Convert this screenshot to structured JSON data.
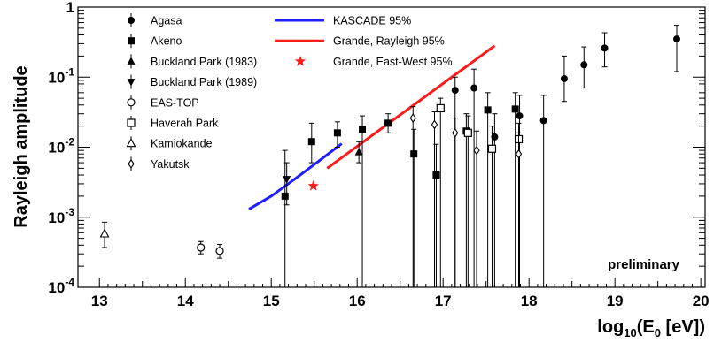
{
  "chart_data": {
    "type": "scatter",
    "title": "",
    "xlabel_main": "log",
    "xlabel_sub": "10",
    "xlabel_paren": "(E",
    "xlabel_sub2": "0",
    "xlabel_end": " [eV])",
    "ylabel": "Rayleigh amplitude",
    "x_range": [
      12.75,
      20.05
    ],
    "y_range_log": [
      -4,
      0
    ],
    "y_scale": "log",
    "x_ticks": [
      13,
      14,
      15,
      16,
      17,
      18,
      19,
      20
    ],
    "y_ticks": [
      {
        "base": "10",
        "exp": "-4"
      },
      {
        "base": "10",
        "exp": "-3"
      },
      {
        "base": "10",
        "exp": "-2"
      },
      {
        "base": "10",
        "exp": "-1"
      },
      {
        "base": "1",
        "exp": ""
      }
    ],
    "annotation": "preliminary",
    "legend": [
      {
        "label": "Agasa",
        "marker": "circle-filled"
      },
      {
        "label": "Akeno",
        "marker": "square-filled"
      },
      {
        "label": "Buckland Park (1983)",
        "marker": "triangle-up-filled"
      },
      {
        "label": "Buckland Park (1989)",
        "marker": "triangle-down-filled"
      },
      {
        "label": "EAS-TOP",
        "marker": "circle-open"
      },
      {
        "label": "Haverah Park",
        "marker": "square-open"
      },
      {
        "label": "Kamiokande",
        "marker": "triangle-up-open"
      },
      {
        "label": "Yakutsk",
        "marker": "diamond-open"
      },
      {
        "label": "KASCADE 95%",
        "marker": "line",
        "color": "#1e1eff"
      },
      {
        "label": "Grande, Rayleigh 95%",
        "marker": "line",
        "color": "#ff1a1a"
      },
      {
        "label": "Grande, East-West 95%",
        "marker": "star",
        "color": "#ff1a1a"
      }
    ],
    "series": [
      {
        "name": "Agasa",
        "marker": "circle-filled",
        "points": [
          {
            "x": 17.14,
            "y": 0.065,
            "lo": 0.0001,
            "hi": 0.1
          },
          {
            "x": 17.36,
            "y": 0.07,
            "lo": 0.0001,
            "hi": 0.13
          },
          {
            "x": 17.6,
            "y": 0.014,
            "lo": 0.0001,
            "hi": 0.03
          },
          {
            "x": 17.89,
            "y": 0.028,
            "lo": 0.0001,
            "hi": 0.055
          },
          {
            "x": 18.17,
            "y": 0.024,
            "lo": 0.0001,
            "hi": 0.055
          },
          {
            "x": 18.41,
            "y": 0.095,
            "lo": 0.045,
            "hi": 0.2
          },
          {
            "x": 18.64,
            "y": 0.15,
            "lo": 0.07,
            "hi": 0.27
          },
          {
            "x": 18.88,
            "y": 0.26,
            "lo": 0.14,
            "hi": 0.43
          },
          {
            "x": 19.72,
            "y": 0.35,
            "lo": 0.12,
            "hi": 0.55
          }
        ]
      },
      {
        "name": "Akeno",
        "marker": "square-filled",
        "points": [
          {
            "x": 15.16,
            "y": 0.002,
            "lo": 0.0001,
            "hi": 0.009
          },
          {
            "x": 15.47,
            "y": 0.012,
            "lo": 0.006,
            "hi": 0.022
          },
          {
            "x": 15.77,
            "y": 0.016,
            "lo": 0.01,
            "hi": 0.023
          },
          {
            "x": 16.06,
            "y": 0.018,
            "lo": 0.0001,
            "hi": 0.028
          },
          {
            "x": 16.36,
            "y": 0.022,
            "lo": 0.016,
            "hi": 0.03
          },
          {
            "x": 16.66,
            "y": 0.008,
            "lo": 0.0001,
            "hi": 0.018
          },
          {
            "x": 16.92,
            "y": 0.004,
            "lo": 0.0001,
            "hi": 0.011
          },
          {
            "x": 17.27,
            "y": 0.017,
            "lo": 0.0001,
            "hi": 0.03
          },
          {
            "x": 17.52,
            "y": 0.034,
            "lo": 0.0001,
            "hi": 0.06
          },
          {
            "x": 17.84,
            "y": 0.035,
            "lo": 0.0001,
            "hi": 0.06
          }
        ]
      },
      {
        "name": "Buckland Park (1983)",
        "marker": "triangle-up-filled",
        "points": [
          {
            "x": 16.02,
            "y": 0.0085,
            "lo": 0.006,
            "hi": 0.012
          }
        ]
      },
      {
        "name": "Buckland Park (1989)",
        "marker": "triangle-down-filled",
        "points": [
          {
            "x": 15.18,
            "y": 0.0035,
            "lo": 0.0015,
            "hi": 0.006
          }
        ]
      },
      {
        "name": "EAS-TOP",
        "marker": "circle-open",
        "points": [
          {
            "x": 14.18,
            "y": 0.00037,
            "lo": 0.0003,
            "hi": 0.00045
          },
          {
            "x": 14.4,
            "y": 0.00033,
            "lo": 0.00026,
            "hi": 0.00041
          }
        ]
      },
      {
        "name": "Haverah Park",
        "marker": "square-open",
        "points": [
          {
            "x": 16.97,
            "y": 0.036,
            "lo": 0.0001,
            "hi": 0.05
          },
          {
            "x": 17.29,
            "y": 0.016,
            "lo": 0.0001,
            "hi": 0.028
          },
          {
            "x": 17.57,
            "y": 0.0095,
            "lo": 0.0001,
            "hi": 0.02
          },
          {
            "x": 17.88,
            "y": 0.013,
            "lo": 0.0001,
            "hi": 0.022
          }
        ]
      },
      {
        "name": "Kamiokande",
        "marker": "triangle-up-open",
        "points": [
          {
            "x": 13.06,
            "y": 0.00058,
            "lo": 0.00037,
            "hi": 0.00085
          }
        ]
      },
      {
        "name": "Yakutsk",
        "marker": "diamond-open",
        "points": [
          {
            "x": 16.65,
            "y": 0.026,
            "lo": 0.0001,
            "hi": 0.038
          },
          {
            "x": 16.9,
            "y": 0.021,
            "lo": 0.0001,
            "hi": 0.032
          },
          {
            "x": 17.14,
            "y": 0.016,
            "lo": 0.0001,
            "hi": 0.026
          },
          {
            "x": 17.39,
            "y": 0.009,
            "lo": 0.0001,
            "hi": 0.017
          },
          {
            "x": 17.88,
            "y": 0.008,
            "lo": 0.0001,
            "hi": 0.016
          }
        ]
      }
    ],
    "lines": [
      {
        "name": "KASCADE 95%",
        "color": "#1e1eff",
        "points": [
          {
            "x": 14.74,
            "y": 0.0013
          },
          {
            "x": 15.0,
            "y": 0.002
          },
          {
            "x": 15.3,
            "y": 0.0037
          },
          {
            "x": 15.55,
            "y": 0.0063
          },
          {
            "x": 15.82,
            "y": 0.0112
          }
        ]
      },
      {
        "name": "Grande, Rayleigh 95%",
        "color": "#ff1a1a",
        "points": [
          {
            "x": 15.65,
            "y": 0.005
          },
          {
            "x": 17.6,
            "y": 0.28
          }
        ]
      }
    ],
    "stars": [
      {
        "name": "Grande, East-West 95%",
        "color": "#ff1a1a",
        "x": 15.49,
        "y": 0.0028
      }
    ]
  }
}
